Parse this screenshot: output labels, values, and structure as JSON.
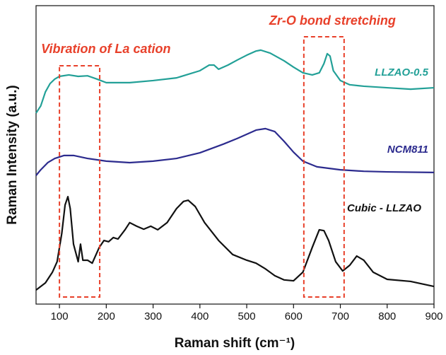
{
  "chart_data": {
    "type": "line",
    "xlabel": "Raman shift (cm⁻¹)",
    "ylabel": "Raman Intensity (a.u.)",
    "xlim": [
      50,
      900
    ],
    "xticks": [
      100,
      200,
      300,
      400,
      500,
      600,
      700,
      800,
      900
    ],
    "ylim": [
      0,
      100
    ],
    "annotations": [
      {
        "text": "Vibration of La cation",
        "x": [
          100,
          186
        ]
      },
      {
        "text": "Zr-O bond stretching",
        "x": [
          622,
          708
        ]
      }
    ],
    "series": [
      {
        "name": "LLZAO-0.5",
        "color": "#22a097",
        "x": [
          50,
          60,
          70,
          80,
          90,
          100,
          120,
          140,
          160,
          180,
          200,
          250,
          300,
          350,
          400,
          420,
          430,
          440,
          460,
          480,
          500,
          520,
          530,
          550,
          580,
          600,
          620,
          640,
          655,
          665,
          672,
          678,
          685,
          700,
          720,
          750,
          800,
          850,
          900
        ],
        "values": [
          64.0,
          66.4,
          71.1,
          73.9,
          75.4,
          76.3,
          76.8,
          76.3,
          76.5,
          75.4,
          74.2,
          74.2,
          74.9,
          75.8,
          78.2,
          80.1,
          80.1,
          78.7,
          80.1,
          81.8,
          83.4,
          84.8,
          85.1,
          84.1,
          81.5,
          79.4,
          77.5,
          76.8,
          77.5,
          80.6,
          83.9,
          83.1,
          78.2,
          74.9,
          73.5,
          73.0,
          72.5,
          72.0,
          72.5
        ]
      },
      {
        "name": "NCM811",
        "color": "#2c2b8e",
        "x": [
          50,
          60,
          75,
          90,
          110,
          130,
          160,
          200,
          250,
          300,
          350,
          400,
          450,
          480,
          500,
          520,
          540,
          560,
          580,
          600,
          620,
          650,
          700,
          750,
          800,
          900
        ],
        "values": [
          43.1,
          45.0,
          47.4,
          48.8,
          49.8,
          49.8,
          48.8,
          47.9,
          47.4,
          47.9,
          48.8,
          50.7,
          53.6,
          55.5,
          56.9,
          58.3,
          58.8,
          57.8,
          54.5,
          50.9,
          47.9,
          46.0,
          45.0,
          44.5,
          44.3,
          44.1
        ]
      },
      {
        "name": "Cubic - LLZAO",
        "color": "#111111",
        "x": [
          50,
          70,
          85,
          95,
          105,
          112,
          118,
          123,
          130,
          140,
          145,
          150,
          160,
          170,
          185,
          195,
          205,
          215,
          225,
          240,
          250,
          265,
          280,
          295,
          310,
          330,
          350,
          365,
          375,
          390,
          410,
          440,
          470,
          500,
          520,
          540,
          560,
          580,
          600,
          620,
          640,
          655,
          665,
          675,
          690,
          705,
          720,
          735,
          750,
          770,
          800,
          850,
          900
        ],
        "values": [
          4.7,
          7.1,
          10.7,
          14.2,
          23.7,
          33.2,
          36.0,
          32.0,
          20.1,
          14.2,
          20.1,
          14.7,
          14.7,
          13.7,
          19.0,
          21.3,
          20.9,
          22.3,
          21.8,
          24.9,
          27.3,
          26.1,
          25.1,
          26.1,
          24.9,
          27.3,
          32.0,
          34.4,
          34.8,
          32.7,
          27.3,
          21.3,
          16.6,
          14.7,
          13.7,
          11.8,
          9.5,
          8.1,
          7.8,
          10.7,
          19.0,
          24.9,
          24.6,
          21.3,
          14.2,
          11.1,
          13.0,
          16.1,
          14.7,
          10.7,
          8.3,
          7.6,
          5.9
        ]
      }
    ]
  }
}
